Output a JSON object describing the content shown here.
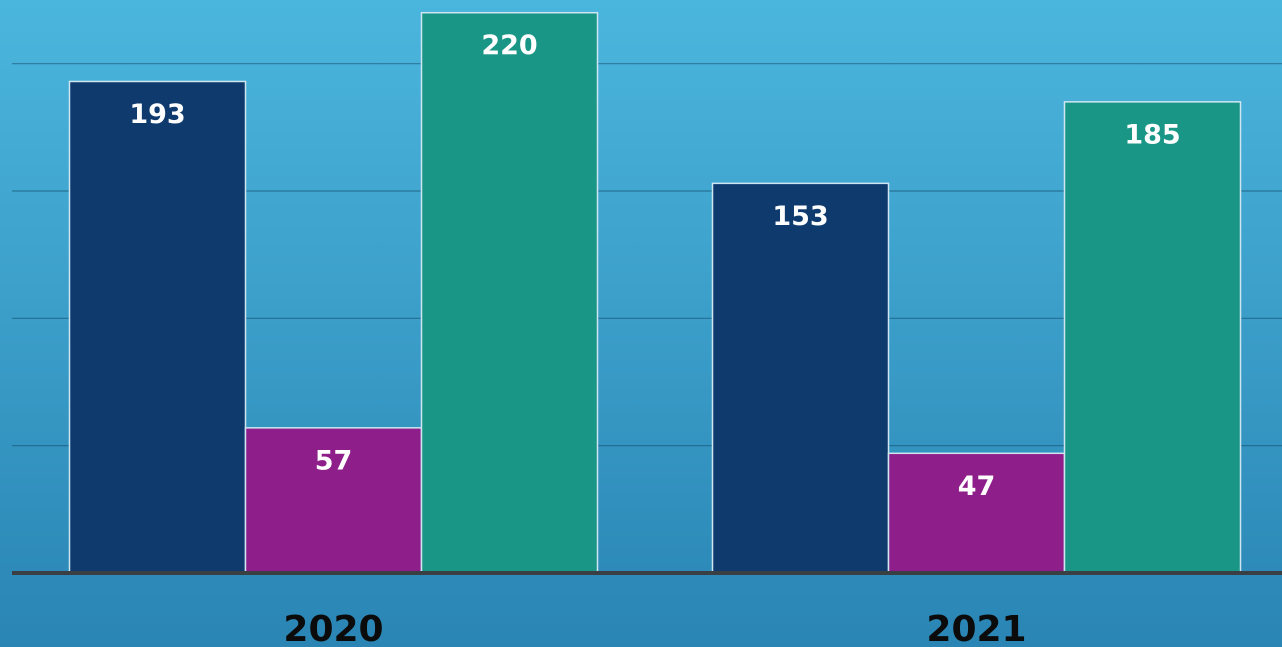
{
  "chart_data": {
    "type": "bar",
    "categories": [
      "2020",
      "2021"
    ],
    "series": [
      {
        "color": "#0e3a6e",
        "values": [
          193,
          153
        ]
      },
      {
        "color": "#8e1f8a",
        "values": [
          57,
          47
        ]
      },
      {
        "color": "#1a9686",
        "values": [
          220,
          185
        ]
      }
    ],
    "ylim": [
      0,
      225
    ],
    "yticks": [
      0,
      50,
      100,
      150,
      200
    ],
    "grid": true
  }
}
